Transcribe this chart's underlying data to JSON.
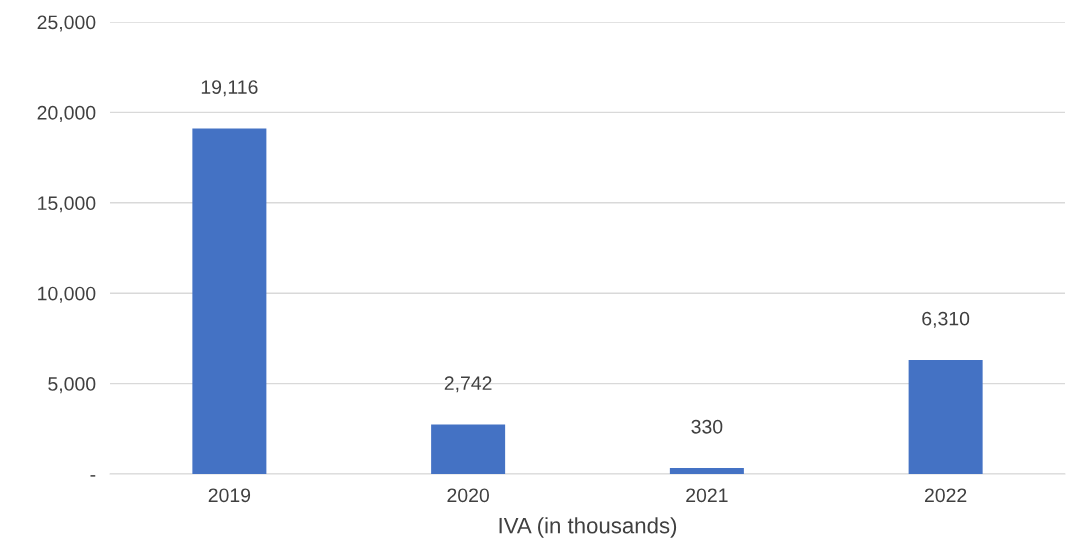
{
  "chart_data": {
    "type": "bar",
    "xlabel": "IVA (in thousands)",
    "categories": [
      "2019",
      "2020",
      "2021",
      "2022"
    ],
    "values": [
      19116,
      2742,
      330,
      6310
    ],
    "value_labels": [
      "19,116",
      "2,742",
      "330",
      "6,310"
    ],
    "color": "#4472c4",
    "ylim": [
      0,
      25000
    ],
    "yticks": [
      {
        "value": 0,
        "label": "-"
      },
      {
        "value": 5000,
        "label": "5,000"
      },
      {
        "value": 10000,
        "label": "10,000"
      },
      {
        "value": 15000,
        "label": "15,000"
      },
      {
        "value": 20000,
        "label": "20,000"
      },
      {
        "value": 25000,
        "label": "25,000"
      }
    ],
    "grid": "y"
  }
}
